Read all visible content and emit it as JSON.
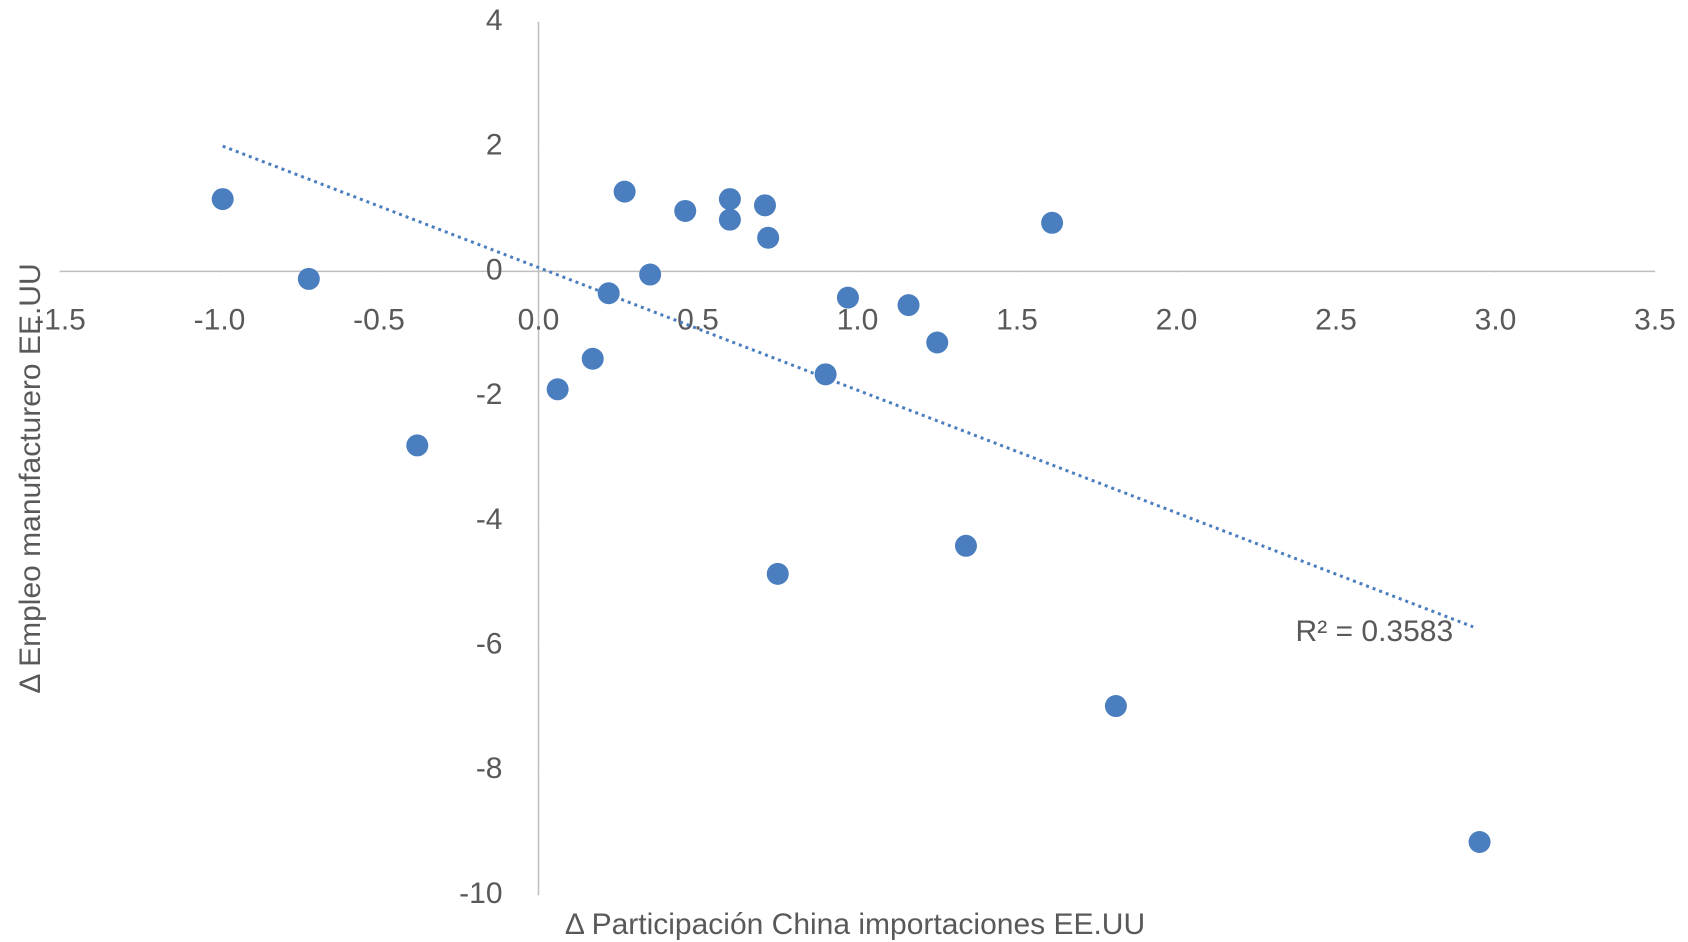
{
  "chart_data": {
    "type": "scatter",
    "x_label": "Δ Participación China importaciones EE.UU",
    "y_label": "Δ Empleo manufacturero EE.UU",
    "xlim": [
      -1.5,
      3.5
    ],
    "ylim": [
      -10,
      4
    ],
    "xticks": [
      -1.5,
      {
        "value": -1.0,
        "label": "-1.0"
      },
      -0.5,
      {
        "value": 0.0,
        "label": "0.0"
      },
      0.5,
      {
        "value": 1.0,
        "label": "1.0"
      },
      1.5,
      {
        "value": 2.0,
        "label": "2.0"
      },
      2.5,
      {
        "value": 3.0,
        "label": "3.0"
      },
      3.5
    ],
    "yticks": [
      4,
      2,
      0,
      -2,
      -4,
      -6,
      -8,
      -10
    ],
    "grid": false,
    "series": [
      {
        "color": "#4a7ebf",
        "x": [
          -0.99,
          -0.72,
          -0.38,
          0.06,
          0.17,
          0.22,
          0.27,
          0.35,
          0.46,
          0.6,
          0.6,
          0.71,
          0.72,
          0.75,
          0.9,
          0.97,
          1.16,
          1.25,
          1.34,
          1.61,
          1.81,
          2.95
        ],
        "values": [
          1.16,
          -0.12,
          -2.79,
          -1.89,
          -1.4,
          -0.35,
          1.28,
          -0.05,
          0.97,
          1.16,
          0.83,
          1.06,
          0.54,
          -4.85,
          -1.65,
          -0.42,
          -0.54,
          -1.14,
          -4.4,
          0.78,
          -6.97,
          -9.15
        ]
      }
    ],
    "trendline": {
      "x": [
        -0.99,
        2.93
      ],
      "values": [
        2.01,
        -5.7
      ],
      "color": "#4a7ebf",
      "label": "R² = 0.3583"
    }
  }
}
